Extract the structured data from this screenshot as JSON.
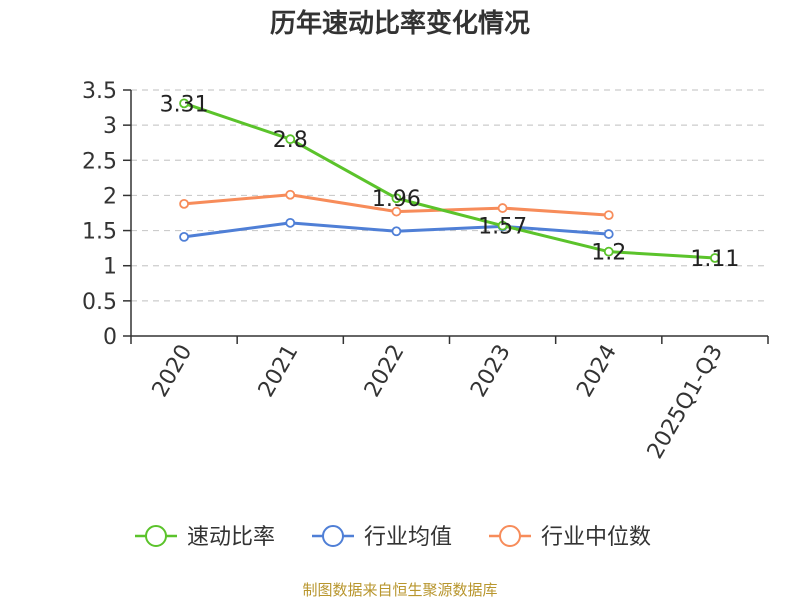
{
  "chart_data": {
    "type": "line",
    "title": "历年速动比率变化情况",
    "categories": [
      "2020",
      "2021",
      "2022",
      "2023",
      "2024",
      "2025Q1-Q3"
    ],
    "ylim": [
      0,
      3.5
    ],
    "yticks": [
      "0",
      "0.5",
      "1",
      "1.5",
      "2",
      "2.5",
      "3",
      "3.5"
    ],
    "grid": true,
    "legend_position": "bottom",
    "series": [
      {
        "name": "速动比率",
        "color": "#5bc32b",
        "values": [
          3.31,
          2.8,
          1.96,
          1.57,
          1.2,
          1.11
        ],
        "labels": [
          "3.31",
          "2.8",
          "1.96",
          "1.57",
          "1.2",
          "1.11"
        ]
      },
      {
        "name": "行业均值",
        "color": "#4f7fd6",
        "values": [
          1.41,
          1.61,
          1.49,
          1.56,
          1.45,
          null
        ]
      },
      {
        "name": "行业中位数",
        "color": "#f78c5a",
        "values": [
          1.88,
          2.01,
          1.77,
          1.82,
          1.72,
          null
        ]
      }
    ],
    "source": "制图数据来自恒生聚源数据库"
  }
}
